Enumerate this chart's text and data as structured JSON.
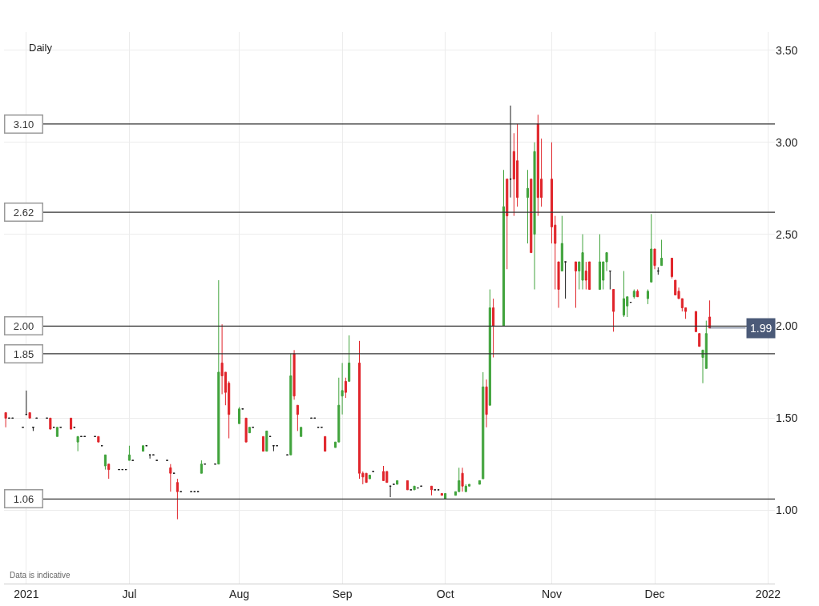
{
  "chart_data": {
    "type": "candlestick",
    "x": [
      "2021-05-26",
      "2021-05-27",
      "2021-05-28",
      "2021-05-31",
      "2021-06-01",
      "2021-06-02",
      "2021-06-03",
      "2021-06-04",
      "2021-06-07",
      "2021-06-08",
      "2021-06-09",
      "2021-06-10",
      "2021-06-11",
      "2021-06-14",
      "2021-06-15",
      "2021-06-16",
      "2021-06-17",
      "2021-06-18",
      "2021-06-21",
      "2021-06-22",
      "2021-06-23",
      "2021-06-24",
      "2021-06-25",
      "2021-06-28",
      "2021-06-29",
      "2021-06-30",
      "2021-07-01",
      "2021-07-02",
      "2021-07-05",
      "2021-07-06",
      "2021-07-07",
      "2021-07-08",
      "2021-07-09",
      "2021-07-12",
      "2021-07-13",
      "2021-07-14",
      "2021-07-15",
      "2021-07-16",
      "2021-07-19",
      "2021-07-20",
      "2021-07-21",
      "2021-07-22",
      "2021-07-23",
      "2021-07-26",
      "2021-07-27",
      "2021-07-28",
      "2021-07-29",
      "2021-07-30",
      "2021-08-02",
      "2021-08-03",
      "2021-08-04",
      "2021-08-05",
      "2021-08-06",
      "2021-08-09",
      "2021-08-10",
      "2021-08-11",
      "2021-08-12",
      "2021-08-13",
      "2021-08-16",
      "2021-08-17",
      "2021-08-18",
      "2021-08-19",
      "2021-08-20",
      "2021-08-23",
      "2021-08-24",
      "2021-08-25",
      "2021-08-26",
      "2021-08-27",
      "2021-08-30",
      "2021-08-31",
      "2021-09-01",
      "2021-09-02",
      "2021-09-03",
      "2021-09-06",
      "2021-09-07",
      "2021-09-08",
      "2021-09-09",
      "2021-09-10",
      "2021-09-13",
      "2021-09-14",
      "2021-09-15",
      "2021-09-16",
      "2021-09-17",
      "2021-09-20",
      "2021-09-21",
      "2021-09-22",
      "2021-09-23",
      "2021-09-24",
      "2021-09-27",
      "2021-09-28",
      "2021-09-29",
      "2021-09-30",
      "2021-10-01",
      "2021-10-04",
      "2021-10-05",
      "2021-10-06",
      "2021-10-07",
      "2021-10-08",
      "2021-10-11",
      "2021-10-12",
      "2021-10-13",
      "2021-10-14",
      "2021-10-15",
      "2021-10-18",
      "2021-10-19",
      "2021-10-20",
      "2021-10-21",
      "2021-10-22",
      "2021-10-25",
      "2021-10-26",
      "2021-10-27",
      "2021-10-28",
      "2021-10-29",
      "2021-11-01",
      "2021-11-02",
      "2021-11-03",
      "2021-11-04",
      "2021-11-05",
      "2021-11-08",
      "2021-11-09",
      "2021-11-10",
      "2021-11-11",
      "2021-11-12",
      "2021-11-15",
      "2021-11-16",
      "2021-11-17",
      "2021-11-18",
      "2021-11-19",
      "2021-11-22",
      "2021-11-23",
      "2021-11-24",
      "2021-11-25",
      "2021-11-26",
      "2021-11-29",
      "2021-11-30",
      "2021-12-01",
      "2021-12-02",
      "2021-12-03",
      "2021-12-06",
      "2021-12-07",
      "2021-12-08",
      "2021-12-09",
      "2021-12-10",
      "2021-12-13",
      "2021-12-14",
      "2021-12-15",
      "2021-12-16",
      "2021-12-17"
    ],
    "ohlc": [
      [
        1.53,
        1.53,
        1.45,
        1.5
      ],
      [
        1.5,
        1.5,
        1.5,
        1.5
      ],
      [
        1.5,
        1.5,
        1.5,
        1.5
      ],
      [
        1.45,
        1.45,
        1.45,
        1.45
      ],
      [
        1.52,
        1.65,
        1.52,
        1.52
      ],
      [
        1.53,
        1.53,
        1.5,
        1.5
      ],
      [
        1.45,
        1.45,
        1.43,
        1.45
      ],
      [
        1.5,
        1.5,
        1.5,
        1.5
      ],
      [
        1.5,
        1.5,
        1.5,
        1.5
      ],
      [
        1.5,
        1.5,
        1.44,
        1.44
      ],
      [
        1.45,
        1.45,
        1.45,
        1.45
      ],
      [
        1.4,
        1.45,
        1.4,
        1.45
      ],
      [
        1.45,
        1.45,
        1.45,
        1.45
      ],
      [
        1.5,
        1.5,
        1.44,
        1.44
      ],
      [
        1.45,
        1.45,
        1.45,
        1.45
      ],
      [
        1.37,
        1.4,
        1.32,
        1.4
      ],
      [
        1.4,
        1.4,
        1.4,
        1.4
      ],
      [
        1.4,
        1.4,
        1.4,
        1.4
      ],
      [
        1.4,
        1.4,
        1.4,
        1.4
      ],
      [
        1.4,
        1.4,
        1.37,
        1.37
      ],
      [
        1.35,
        1.35,
        1.35,
        1.35
      ],
      [
        1.24,
        1.3,
        1.22,
        1.3
      ],
      [
        1.25,
        1.25,
        1.17,
        1.22
      ],
      [
        1.22,
        1.22,
        1.22,
        1.22
      ],
      [
        1.22,
        1.22,
        1.22,
        1.22
      ],
      [
        1.22,
        1.22,
        1.22,
        1.22
      ],
      [
        1.27,
        1.35,
        1.27,
        1.3
      ],
      [
        1.27,
        1.27,
        1.27,
        1.27
      ],
      [
        1.32,
        1.35,
        1.32,
        1.35
      ],
      [
        1.35,
        1.35,
        1.35,
        1.35
      ],
      [
        1.3,
        1.3,
        1.28,
        1.3
      ],
      [
        1.3,
        1.3,
        1.3,
        1.3
      ],
      [
        1.27,
        1.27,
        1.27,
        1.27
      ],
      [
        1.27,
        1.27,
        1.27,
        1.27
      ],
      [
        1.23,
        1.25,
        1.1,
        1.2
      ],
      [
        1.2,
        1.2,
        1.2,
        1.2
      ],
      [
        1.15,
        1.17,
        0.95,
        1.1
      ],
      [
        1.1,
        1.1,
        1.1,
        1.1
      ],
      [
        1.1,
        1.1,
        1.1,
        1.1
      ],
      [
        1.1,
        1.1,
        1.1,
        1.1
      ],
      [
        1.1,
        1.1,
        1.1,
        1.1
      ],
      [
        1.2,
        1.27,
        1.2,
        1.25
      ],
      [
        1.25,
        1.25,
        1.25,
        1.25
      ],
      [
        1.25,
        1.25,
        1.25,
        1.25
      ],
      [
        1.25,
        2.25,
        1.25,
        1.75
      ],
      [
        1.8,
        2.01,
        1.63,
        1.73
      ],
      [
        1.75,
        1.75,
        1.57,
        1.64
      ],
      [
        1.69,
        1.7,
        1.39,
        1.52
      ],
      [
        1.47,
        1.56,
        1.47,
        1.55
      ],
      [
        1.55,
        1.55,
        1.55,
        1.55
      ],
      [
        1.5,
        1.5,
        1.37,
        1.37
      ],
      [
        1.42,
        1.45,
        1.42,
        1.45
      ],
      [
        1.45,
        1.45,
        1.45,
        1.45
      ],
      [
        1.4,
        1.4,
        1.32,
        1.32
      ],
      [
        1.32,
        1.43,
        1.32,
        1.43
      ],
      [
        1.4,
        1.4,
        1.4,
        1.4
      ],
      [
        1.35,
        1.35,
        1.32,
        1.35
      ],
      [
        1.35,
        1.35,
        1.35,
        1.35
      ],
      [
        1.3,
        1.3,
        1.3,
        1.3
      ],
      [
        1.3,
        1.85,
        1.3,
        1.73
      ],
      [
        1.85,
        1.87,
        1.6,
        1.62
      ],
      [
        1.57,
        1.57,
        1.43,
        1.52
      ],
      [
        1.4,
        1.45,
        1.4,
        1.45
      ],
      [
        1.5,
        1.5,
        1.5,
        1.5
      ],
      [
        1.5,
        1.5,
        1.5,
        1.5
      ],
      [
        1.45,
        1.45,
        1.45,
        1.45
      ],
      [
        1.45,
        1.45,
        1.45,
        1.45
      ],
      [
        1.4,
        1.4,
        1.32,
        1.32
      ],
      [
        1.34,
        1.37,
        1.34,
        1.37
      ],
      [
        1.37,
        1.72,
        1.37,
        1.57
      ],
      [
        1.62,
        1.8,
        1.52,
        1.65
      ],
      [
        1.7,
        1.72,
        1.61,
        1.64
      ],
      [
        1.7,
        1.95,
        1.7,
        1.8
      ],
      [
        1.8,
        1.92,
        1.17,
        1.2
      ],
      [
        1.2,
        1.21,
        1.14,
        1.18
      ],
      [
        1.2,
        1.2,
        1.15,
        1.15
      ],
      [
        1.17,
        1.19,
        1.17,
        1.19
      ],
      [
        1.21,
        1.21,
        1.21,
        1.21
      ],
      [
        1.21,
        1.24,
        1.16,
        1.16
      ],
      [
        1.21,
        1.21,
        1.15,
        1.15
      ],
      [
        1.13,
        1.13,
        1.07,
        1.13
      ],
      [
        1.14,
        1.14,
        1.14,
        1.14
      ],
      [
        1.14,
        1.16,
        1.14,
        1.16
      ],
      [
        1.16,
        1.16,
        1.11,
        1.11
      ],
      [
        1.11,
        1.11,
        1.11,
        1.11
      ],
      [
        1.11,
        1.13,
        1.11,
        1.13
      ],
      [
        1.12,
        1.12,
        1.12,
        1.12
      ],
      [
        1.13,
        1.13,
        1.13,
        1.13
      ],
      [
        1.13,
        1.13,
        1.08,
        1.11
      ],
      [
        1.11,
        1.11,
        1.11,
        1.11
      ],
      [
        1.11,
        1.11,
        1.11,
        1.11
      ],
      [
        1.09,
        1.09,
        1.08,
        1.08
      ],
      [
        1.06,
        1.09,
        1.06,
        1.09
      ],
      [
        1.08,
        1.1,
        1.08,
        1.1
      ],
      [
        1.1,
        1.23,
        1.1,
        1.16
      ],
      [
        1.2,
        1.23,
        1.1,
        1.13
      ],
      [
        1.1,
        1.14,
        1.1,
        1.13
      ],
      [
        1.13,
        1.14,
        1.13,
        1.14
      ],
      [
        1.14,
        1.16,
        1.14,
        1.16
      ],
      [
        1.17,
        1.75,
        1.17,
        1.67
      ],
      [
        1.67,
        1.71,
        1.45,
        1.52
      ],
      [
        1.57,
        2.2,
        1.57,
        2.1
      ],
      [
        2.1,
        2.15,
        1.83,
        2.0
      ],
      [
        2.0,
        2.85,
        2.0,
        2.65
      ],
      [
        2.8,
        2.8,
        2.31,
        2.6
      ],
      [
        2.8,
        3.2,
        2.7,
        2.8
      ],
      [
        2.95,
        3.05,
        2.6,
        2.8
      ],
      [
        2.9,
        3.1,
        2.65,
        2.7
      ],
      [
        2.7,
        2.85,
        2.45,
        2.75
      ],
      [
        2.8,
        2.8,
        2.4,
        2.4
      ],
      [
        2.5,
        3.0,
        2.2,
        2.95
      ],
      [
        3.1,
        3.15,
        2.6,
        2.7
      ],
      [
        2.8,
        3.02,
        2.65,
        2.7
      ],
      [
        2.8,
        3.0,
        2.45,
        2.54
      ],
      [
        2.55,
        2.6,
        2.2,
        2.45
      ],
      [
        2.35,
        2.35,
        2.1,
        2.2
      ],
      [
        2.3,
        2.6,
        2.3,
        2.45
      ],
      [
        2.35,
        2.35,
        2.15,
        2.35
      ],
      [
        2.35,
        2.35,
        2.1,
        2.3
      ],
      [
        2.3,
        2.35,
        2.2,
        2.35
      ],
      [
        2.25,
        2.5,
        2.2,
        2.4
      ],
      [
        2.3,
        2.35,
        2.2,
        2.25
      ],
      [
        2.35,
        2.35,
        2.2,
        2.2
      ],
      [
        2.2,
        2.5,
        2.2,
        2.35
      ],
      [
        2.25,
        2.35,
        2.2,
        2.35
      ],
      [
        2.35,
        2.4,
        2.3,
        2.4
      ],
      [
        2.3,
        2.3,
        2.2,
        2.3
      ],
      [
        2.2,
        2.2,
        1.97,
        2.08
      ],
      [
        2.06,
        2.3,
        2.05,
        2.15
      ],
      [
        2.11,
        2.16,
        2.05,
        2.16
      ],
      [
        2.13,
        2.13,
        2.13,
        2.13
      ],
      [
        2.16,
        2.2,
        2.15,
        2.19
      ],
      [
        2.19,
        2.2,
        2.16,
        2.16
      ],
      [
        2.15,
        2.2,
        2.12,
        2.19
      ],
      [
        2.24,
        2.61,
        2.24,
        2.42
      ],
      [
        2.42,
        2.42,
        2.31,
        2.33
      ],
      [
        2.3,
        2.32,
        2.28,
        2.3
      ],
      [
        2.33,
        2.47,
        2.33,
        2.37
      ],
      [
        2.37,
        2.37,
        2.26,
        2.27
      ],
      [
        2.25,
        2.25,
        2.17,
        2.17
      ],
      [
        2.19,
        2.21,
        2.15,
        2.15
      ],
      [
        2.15,
        2.15,
        2.08,
        2.1
      ],
      [
        2.1,
        2.1,
        2.04,
        2.08
      ],
      [
        2.08,
        2.08,
        1.97,
        1.97
      ],
      [
        1.96,
        1.96,
        1.89,
        1.89
      ],
      [
        1.83,
        1.87,
        1.69,
        1.87
      ],
      [
        1.77,
        2.03,
        1.77,
        1.96
      ],
      [
        2.05,
        2.14,
        1.99,
        1.99
      ]
    ],
    "colors": [
      "#e0242a",
      "#1c1c1c",
      "#1c1c1c",
      "#1c1c1c",
      "#1c1c1c",
      "#e0242a",
      "#1c1c1c",
      "#1c1c1c",
      "#1c1c1c",
      "#e0242a",
      "#1c1c1c",
      "#40a33c",
      "#1c1c1c",
      "#e0242a",
      "#1c1c1c",
      "#40a33c",
      "#1c1c1c",
      "#1c1c1c",
      "#1c1c1c",
      "#e0242a",
      "#1c1c1c",
      "#40a33c",
      "#e0242a",
      "#1c1c1c",
      "#1c1c1c",
      "#1c1c1c",
      "#40a33c",
      "#1c1c1c",
      "#40a33c",
      "#1c1c1c",
      "#1c1c1c",
      "#1c1c1c",
      "#1c1c1c",
      "#1c1c1c",
      "#e0242a",
      "#1c1c1c",
      "#e0242a",
      "#1c1c1c",
      "#1c1c1c",
      "#1c1c1c",
      "#1c1c1c",
      "#40a33c",
      "#1c1c1c",
      "#1c1c1c",
      "#40a33c",
      "#e0242a",
      "#e0242a",
      "#e0242a",
      "#40a33c",
      "#1c1c1c",
      "#e0242a",
      "#40a33c",
      "#1c1c1c",
      "#e0242a",
      "#40a33c",
      "#1c1c1c",
      "#1c1c1c",
      "#1c1c1c",
      "#1c1c1c",
      "#40a33c",
      "#e0242a",
      "#e0242a",
      "#40a33c",
      "#1c1c1c",
      "#1c1c1c",
      "#1c1c1c",
      "#1c1c1c",
      "#e0242a",
      "#40a33c",
      "#40a33c",
      "#40a33c",
      "#e0242a",
      "#40a33c",
      "#e0242a",
      "#e0242a",
      "#e0242a",
      "#40a33c",
      "#1c1c1c",
      "#e0242a",
      "#e0242a",
      "#1c1c1c",
      "#1c1c1c",
      "#40a33c",
      "#e0242a",
      "#1c1c1c",
      "#40a33c",
      "#1c1c1c",
      "#1c1c1c",
      "#e0242a",
      "#1c1c1c",
      "#1c1c1c",
      "#e0242a",
      "#40a33c",
      "#40a33c",
      "#40a33c",
      "#e0242a",
      "#40a33c",
      "#40a33c",
      "#40a33c",
      "#40a33c",
      "#e0242a",
      "#40a33c",
      "#e0242a",
      "#40a33c",
      "#e0242a",
      "#1c1c1c",
      "#e0242a",
      "#e0242a",
      "#40a33c",
      "#e0242a",
      "#40a33c",
      "#e0242a",
      "#e0242a",
      "#e0242a",
      "#e0242a",
      "#e0242a",
      "#40a33c",
      "#1c1c1c",
      "#e0242a",
      "#40a33c",
      "#40a33c",
      "#e0242a",
      "#e0242a",
      "#40a33c",
      "#40a33c",
      "#40a33c",
      "#1c1c1c",
      "#e0242a",
      "#40a33c",
      "#40a33c",
      "#1c1c1c",
      "#40a33c",
      "#e0242a",
      "#40a33c",
      "#40a33c",
      "#e0242a",
      "#1c1c1c",
      "#40a33c",
      "#e0242a",
      "#e0242a",
      "#e0242a",
      "#e0242a",
      "#e0242a",
      "#e0242a",
      "#e0242a",
      "#40a33c",
      "#40a33c",
      "#e0242a"
    ],
    "xlim": [
      "2021-05-25T12:00",
      "2022-01-05"
    ],
    "xticks": [
      {
        "value": "2021-06-01",
        "label": "2021"
      },
      {
        "value": "2021-07-01",
        "label": "Jul"
      },
      {
        "value": "2021-08-02",
        "label": "Aug"
      },
      {
        "value": "2021-09-01",
        "label": "Sep"
      },
      {
        "value": "2021-10-01",
        "label": "Oct"
      },
      {
        "value": "2021-11-01",
        "label": "Nov"
      },
      {
        "value": "2021-12-01",
        "label": "Dec"
      },
      {
        "value": "2022-01-03",
        "label": "2022"
      }
    ],
    "ylim": [
      0.6,
      3.6
    ],
    "yticks": [
      {
        "value": 1,
        "label": "1.00"
      },
      {
        "value": 1.5,
        "label": "1.50"
      },
      {
        "value": 2,
        "label": "2.00"
      },
      {
        "value": 2.5,
        "label": "2.50"
      },
      {
        "value": 3,
        "label": "3.00"
      },
      {
        "value": 3.5,
        "label": "3.50"
      }
    ],
    "grid": true,
    "ref_lines": [
      {
        "axis": "y",
        "value": 3.1,
        "label": "3.10",
        "color": "#333333"
      },
      {
        "axis": "y",
        "value": 2.62,
        "label": "2.62",
        "color": "#333333"
      },
      {
        "axis": "y",
        "value": 2.0,
        "label": "2.00",
        "color": "#333333"
      },
      {
        "axis": "y",
        "value": 1.85,
        "label": "1.85",
        "color": "#333333"
      },
      {
        "axis": "y",
        "value": 1.06,
        "label": "1.06",
        "color": "#333333"
      }
    ],
    "annotations": [
      "Daily",
      "Data is indicative",
      {
        "text": "1.99",
        "x": "2021-12-17",
        "y": 1.99
      }
    ]
  }
}
